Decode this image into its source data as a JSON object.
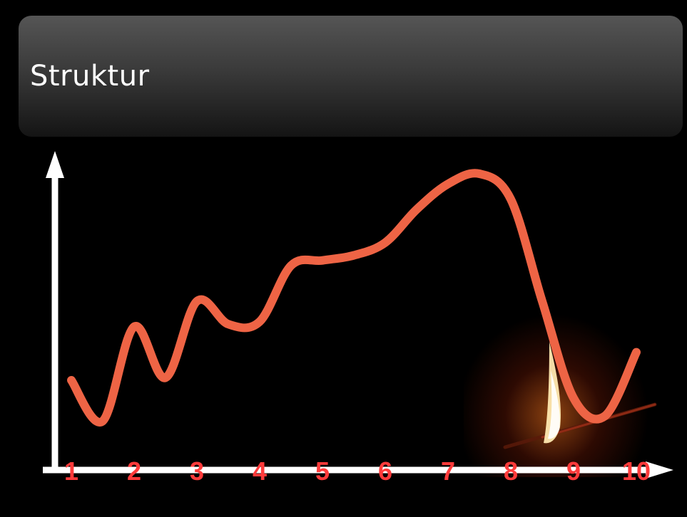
{
  "title": "Struktur",
  "colors": {
    "curve": "#ee6445",
    "axis": "#ffffff",
    "tick_labels": "#ff3b3b",
    "background": "#000000"
  },
  "chart_data": {
    "type": "line",
    "title": "Struktur",
    "xlabel": "",
    "ylabel": "",
    "x_ticks": [
      "1",
      "2",
      "3",
      "4",
      "5",
      "6",
      "7",
      "8",
      "9",
      "10"
    ],
    "series": [
      {
        "x": [
          1,
          1.5,
          2,
          2.5,
          3,
          3.5,
          4,
          4.5,
          5,
          5.5,
          6,
          6.5,
          7,
          7.5,
          8,
          8.5,
          9,
          9.5,
          10
        ],
        "y": [
          0.19,
          0.03,
          0.4,
          0.2,
          0.5,
          0.41,
          0.42,
          0.64,
          0.66,
          0.68,
          0.73,
          0.86,
          0.96,
          1.0,
          0.9,
          0.5,
          0.12,
          0.05,
          0.3
        ]
      }
    ],
    "ylim": [
      0,
      1.05
    ],
    "grid": false,
    "legend": "none"
  }
}
